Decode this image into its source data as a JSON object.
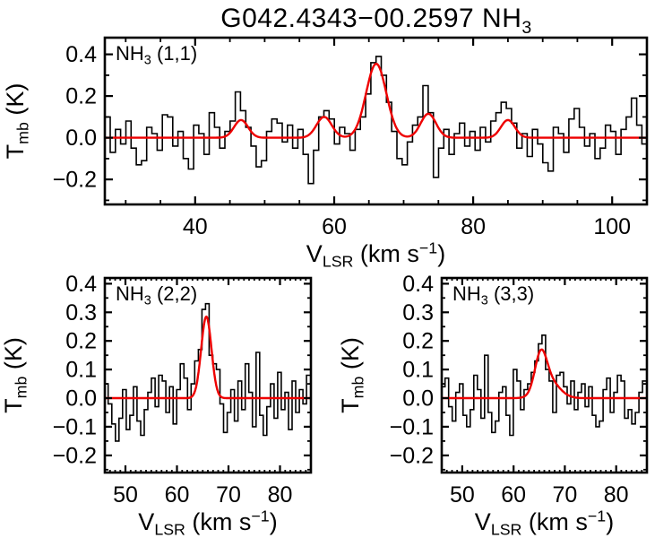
{
  "title": {
    "text": "G042.4343−00.2597 NH",
    "sub": "3"
  },
  "colors": {
    "background": "#ffffff",
    "data": "#000000",
    "fit": "#ee0000",
    "axis": "#000000"
  },
  "chart_data": {
    "type": "line",
    "subtype": "spectral-histogram-with-gaussian-fit",
    "grid": false,
    "legend": false,
    "panels": [
      {
        "id": "nh3-11",
        "label_parts": [
          {
            "t": "NH"
          },
          {
            "t": "3",
            "style": "sub"
          },
          {
            "t": " (1,1)"
          }
        ],
        "x_label_parts": [
          {
            "t": "V"
          },
          {
            "t": "LSR",
            "style": "sub"
          },
          {
            "t": " (km s"
          },
          {
            "t": "−1",
            "style": "sup"
          },
          {
            "t": ")"
          }
        ],
        "y_label_parts": [
          {
            "t": "T"
          },
          {
            "t": "mb",
            "style": "sub"
          },
          {
            "t": " (K)"
          }
        ],
        "x_range": [
          27,
          105
        ],
        "y_range": [
          -0.32,
          0.48
        ],
        "x_major_ticks": [
          40,
          60,
          80,
          100
        ],
        "x_tick_labels": [
          "40",
          "60",
          "80",
          "100"
        ],
        "x_minor_step": 5,
        "y_major_ticks": [
          -0.2,
          0.0,
          0.2,
          0.4
        ],
        "y_tick_labels": [
          "−0.2",
          "0.0",
          "0.2",
          "0.4"
        ],
        "y_minor_step": 0.1,
        "spectrum": {
          "x_start": 27.4,
          "x_step": 0.75,
          "values": [
            0.1,
            -0.07,
            0.04,
            -0.03,
            0.08,
            -0.05,
            -0.13,
            -0.11,
            0.05,
            0.02,
            -0.06,
            0.11,
            0.1,
            -0.04,
            0.03,
            -0.1,
            -0.15,
            0.06,
            0.02,
            -0.08,
            0.12,
            0.05,
            -0.05,
            0.03,
            0.08,
            0.22,
            0.13,
            0.05,
            -0.04,
            -0.14,
            -0.11,
            0.03,
            0.09,
            0.07,
            -0.02,
            0.06,
            -0.05,
            0.04,
            -0.08,
            -0.22,
            -0.06,
            0.1,
            0.13,
            0.09,
            -0.03,
            0.05,
            0.02,
            -0.06,
            0.04,
            0.1,
            0.21,
            0.36,
            0.39,
            0.3,
            0.17,
            0.03,
            -0.1,
            -0.13,
            -0.02,
            0.06,
            0.1,
            0.25,
            0.12,
            -0.19,
            -0.05,
            0.04,
            -0.08,
            0.02,
            0.07,
            -0.04,
            0.03,
            -0.06,
            0.05,
            -0.02,
            0.08,
            0.12,
            0.17,
            0.14,
            0.07,
            -0.05,
            0.02,
            -0.09,
            0.04,
            -0.03,
            -0.12,
            -0.16,
            0.05,
            0.02,
            -0.07,
            0.09,
            0.14,
            0.05,
            -0.04,
            0.02,
            -0.1,
            -0.05,
            0.06,
            0.03,
            -0.08,
            0.04,
            0.1,
            0.19,
            0.06,
            -0.03
          ]
        },
        "fit": {
          "baseline": 0,
          "gaussians": [
            {
              "center": 46.6,
              "amplitude": 0.085,
              "sigma": 1.0
            },
            {
              "center": 58.55,
              "amplitude": 0.1,
              "sigma": 1.1
            },
            {
              "center": 66.05,
              "amplitude": 0.355,
              "sigma": 1.45
            },
            {
              "center": 73.55,
              "amplitude": 0.115,
              "sigma": 1.1
            },
            {
              "center": 85.0,
              "amplitude": 0.085,
              "sigma": 1.0
            }
          ]
        }
      },
      {
        "id": "nh3-22",
        "label_parts": [
          {
            "t": "NH"
          },
          {
            "t": "3",
            "style": "sub"
          },
          {
            "t": " (2,2)"
          }
        ],
        "x_label_parts": [
          {
            "t": "V"
          },
          {
            "t": "LSR",
            "style": "sub"
          },
          {
            "t": " (km s"
          },
          {
            "t": "−1",
            "style": "sup"
          },
          {
            "t": ")"
          }
        ],
        "y_label_parts": [
          {
            "t": "T"
          },
          {
            "t": "mb",
            "style": "sub"
          },
          {
            "t": " (K)"
          }
        ],
        "x_range": [
          46,
          86
        ],
        "y_range": [
          -0.26,
          0.42
        ],
        "x_major_ticks": [
          50,
          60,
          70,
          80
        ],
        "x_tick_labels": [
          "50",
          "60",
          "70",
          "80"
        ],
        "x_minor_step": 1,
        "y_major_ticks": [
          -0.2,
          -0.1,
          0.0,
          0.1,
          0.2,
          0.3,
          0.4
        ],
        "y_tick_labels": [
          "−0.2",
          "−0.1",
          "0.0",
          "0.1",
          "0.2",
          "0.3",
          "0.4"
        ],
        "y_minor_step": 0.05,
        "spectrum": {
          "x_start": 46.3,
          "x_step": 0.7,
          "values": [
            0.05,
            -0.02,
            -0.09,
            -0.15,
            -0.07,
            0.03,
            -0.11,
            -0.06,
            0.04,
            -0.08,
            -0.13,
            -0.04,
            0.02,
            0.07,
            -0.03,
            0.08,
            0.06,
            -0.05,
            0.04,
            -0.09,
            0.03,
            0.12,
            0.07,
            -0.04,
            0.05,
            0.13,
            0.17,
            0.31,
            0.33,
            0.15,
            0.12,
            0.1,
            -0.02,
            -0.12,
            -0.05,
            0.03,
            -0.08,
            0.06,
            -0.04,
            0.12,
            0.02,
            -0.1,
            0.16,
            -0.06,
            -0.13,
            -0.03,
            0.05,
            -0.07,
            0.09,
            -0.04,
            0.02,
            -0.11,
            0.06,
            -0.05,
            0.03,
            -0.02,
            0.08
          ]
        },
        "fit": {
          "baseline": 0,
          "gaussians": [
            {
              "center": 65.7,
              "amplitude": 0.285,
              "sigma": 1.0
            }
          ]
        }
      },
      {
        "id": "nh3-33",
        "label_parts": [
          {
            "t": "NH"
          },
          {
            "t": "3",
            "style": "sub"
          },
          {
            "t": " (3,3)"
          }
        ],
        "x_label_parts": [
          {
            "t": "V"
          },
          {
            "t": "LSR",
            "style": "sub"
          },
          {
            "t": " (km s"
          },
          {
            "t": "−1",
            "style": "sup"
          },
          {
            "t": ")"
          }
        ],
        "y_label_parts": [
          {
            "t": "T"
          },
          {
            "t": "mb",
            "style": "sub"
          },
          {
            "t": " (K)"
          }
        ],
        "x_range": [
          46,
          86
        ],
        "y_range": [
          -0.26,
          0.42
        ],
        "x_major_ticks": [
          50,
          60,
          70,
          80
        ],
        "x_tick_labels": [
          "50",
          "60",
          "70",
          "80"
        ],
        "x_minor_step": 1,
        "y_major_ticks": [
          -0.2,
          -0.1,
          0.0,
          0.1,
          0.2,
          0.3,
          0.4
        ],
        "y_tick_labels": [
          "−0.2",
          "−0.1",
          "0.0",
          "0.1",
          "0.2",
          "0.3",
          "0.4"
        ],
        "y_minor_step": 0.05,
        "spectrum": {
          "x_start": 46.3,
          "x_step": 0.7,
          "values": [
            0.04,
            0.07,
            -0.03,
            -0.08,
            0.02,
            0.05,
            -0.06,
            -0.1,
            -0.04,
            0.08,
            0.03,
            -0.07,
            0.15,
            -0.05,
            -0.12,
            -0.08,
            0.02,
            0.04,
            -0.06,
            -0.13,
            0.1,
            0.06,
            -0.04,
            0.03,
            0.05,
            0.09,
            0.13,
            0.19,
            0.22,
            0.1,
            0.06,
            -0.05,
            0.08,
            0.09,
            0.04,
            -0.02,
            0.06,
            -0.04,
            0.02,
            0.05,
            -0.03,
            0.04,
            -0.06,
            -0.1,
            -0.08,
            0.03,
            0.07,
            -0.05,
            0.02,
            0.08,
            0.06,
            -0.07,
            -0.04,
            -0.09,
            -0.05,
            0.02,
            0.06
          ]
        },
        "fit": {
          "baseline": 0,
          "gaussians": [
            {
              "center": 65.3,
              "amplitude": 0.125,
              "sigma": 1.15
            },
            {
              "center": 66.9,
              "amplitude": 0.06,
              "sigma": 2.0
            }
          ]
        }
      }
    ]
  }
}
